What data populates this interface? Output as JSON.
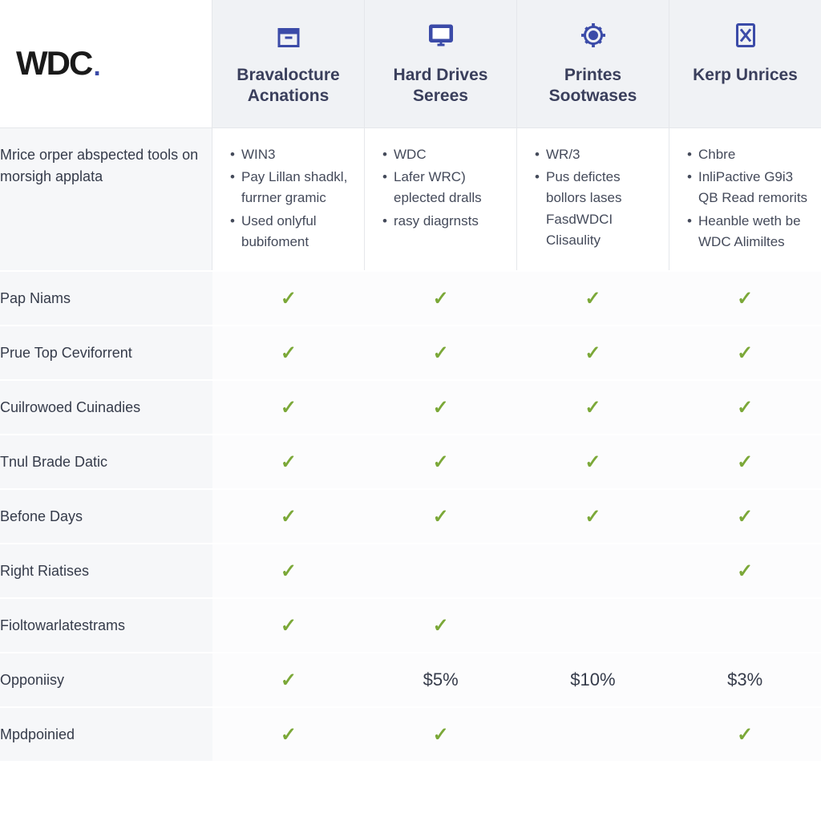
{
  "logo": {
    "text": "WDC",
    "dot": "."
  },
  "columns": [
    {
      "id": "col1",
      "icon": "archive",
      "title_line1": "Bravalocture",
      "title_line2": "Acnations",
      "bullets": [
        "WIN3",
        "Pay Lillan shadkl, furrner gramic",
        "Used onlyful bubifoment"
      ]
    },
    {
      "id": "col2",
      "icon": "monitor",
      "title_line1": "Hard Drives",
      "title_line2": "Serees",
      "bullets": [
        "WDC",
        "Lafer WRC) eplected dralls",
        "rasy diagrnsts"
      ]
    },
    {
      "id": "col3",
      "icon": "gear",
      "title_line1": "Printes",
      "title_line2": "Sootwases",
      "bullets": [
        "WR/3",
        "Pus defictes bollors lases FasdWDCI Clisaulity"
      ]
    },
    {
      "id": "col4",
      "icon": "phone",
      "title_line1": "Kerp Unrices",
      "title_line2": "",
      "bullets": [
        "Chbre",
        "InliPactive G9i3 QB Read remorits",
        "Heanble weth be WDC Alimiltes"
      ]
    }
  ],
  "desc_label": "Mrice orper abspected tools on morsigh applata",
  "features": [
    {
      "label": "Pap Niams",
      "cells": [
        "check",
        "check",
        "check",
        "check"
      ]
    },
    {
      "label": "Prue Top Ceviforrent",
      "cells": [
        "check",
        "check",
        "check",
        "check"
      ]
    },
    {
      "label": "Cuilrowoed Cuinadies",
      "cells": [
        "check",
        "check",
        "check",
        "check"
      ]
    },
    {
      "label": "Tnul Brade Datic",
      "cells": [
        "check",
        "check",
        "check",
        "check"
      ]
    },
    {
      "label": "Befone Days",
      "cells": [
        "check",
        "check",
        "check",
        "check"
      ]
    },
    {
      "label": "Right Riatises",
      "cells": [
        "check",
        "",
        "",
        "check"
      ]
    },
    {
      "label": "Fioltowarlatestrams",
      "cells": [
        "check",
        "check",
        "",
        ""
      ]
    },
    {
      "label": "Opponiisy",
      "cells": [
        "check",
        "$5%",
        "$10%",
        "$3%"
      ]
    },
    {
      "label": "Mpdpoinied",
      "cells": [
        "check",
        "check",
        "",
        "check"
      ]
    }
  ],
  "colors": {
    "accent": "#3b4ba8",
    "check": "#7ba838",
    "text": "#353b4a",
    "header_bg": "#f0f2f5",
    "row_bg": "#f6f7f9",
    "border": "#e5e7eb"
  }
}
